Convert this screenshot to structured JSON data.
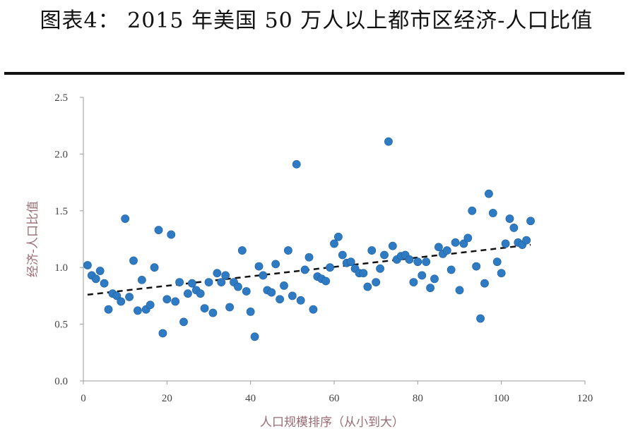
{
  "chart_data": {
    "type": "scatter",
    "title": "图表4：  2015 年美国 50 万人以上都市区经济-人口比值",
    "xlabel": "人口规模排序（从小到大）",
    "ylabel": "经济-人口比值",
    "xlim": [
      0,
      120
    ],
    "ylim": [
      0.0,
      2.5
    ],
    "x_ticks": [
      "0",
      "20",
      "40",
      "60",
      "80",
      "100",
      "120"
    ],
    "y_ticks": [
      "0.0",
      "0.5",
      "1.0",
      "1.5",
      "2.0",
      "2.5"
    ],
    "grid": false,
    "legend": "none",
    "point_color": "#2e7bc4",
    "trend_color": "#111111",
    "points": [
      [
        1,
        1.02
      ],
      [
        2,
        0.93
      ],
      [
        3,
        0.9
      ],
      [
        4,
        0.97
      ],
      [
        5,
        0.86
      ],
      [
        6,
        0.63
      ],
      [
        7,
        0.77
      ],
      [
        8,
        0.75
      ],
      [
        9,
        0.7
      ],
      [
        10,
        1.43
      ],
      [
        11,
        0.74
      ],
      [
        12,
        1.06
      ],
      [
        13,
        0.62
      ],
      [
        14,
        0.89
      ],
      [
        15,
        0.63
      ],
      [
        16,
        0.67
      ],
      [
        17,
        1.0
      ],
      [
        18,
        1.33
      ],
      [
        19,
        0.42
      ],
      [
        20,
        0.72
      ],
      [
        21,
        1.29
      ],
      [
        22,
        0.7
      ],
      [
        23,
        0.87
      ],
      [
        24,
        0.52
      ],
      [
        25,
        0.77
      ],
      [
        26,
        0.86
      ],
      [
        27,
        0.8
      ],
      [
        28,
        0.77
      ],
      [
        29,
        0.64
      ],
      [
        30,
        0.87
      ],
      [
        31,
        0.6
      ],
      [
        32,
        0.95
      ],
      [
        33,
        0.87
      ],
      [
        34,
        0.93
      ],
      [
        35,
        0.65
      ],
      [
        36,
        0.87
      ],
      [
        37,
        0.83
      ],
      [
        38,
        1.15
      ],
      [
        39,
        0.79
      ],
      [
        40,
        0.61
      ],
      [
        41,
        0.39
      ],
      [
        42,
        1.01
      ],
      [
        43,
        0.93
      ],
      [
        44,
        0.8
      ],
      [
        45,
        0.78
      ],
      [
        46,
        1.03
      ],
      [
        47,
        0.72
      ],
      [
        48,
        0.84
      ],
      [
        49,
        1.15
      ],
      [
        50,
        0.75
      ],
      [
        51,
        1.91
      ],
      [
        52,
        0.71
      ],
      [
        53,
        0.98
      ],
      [
        54,
        1.09
      ],
      [
        55,
        0.63
      ],
      [
        56,
        0.92
      ],
      [
        57,
        0.9
      ],
      [
        58,
        0.88
      ],
      [
        59,
        1.0
      ],
      [
        60,
        1.21
      ],
      [
        61,
        1.27
      ],
      [
        62,
        1.11
      ],
      [
        63,
        1.04
      ],
      [
        64,
        1.05
      ],
      [
        65,
        0.99
      ],
      [
        66,
        0.95
      ],
      [
        67,
        0.95
      ],
      [
        68,
        0.83
      ],
      [
        69,
        1.15
      ],
      [
        70,
        0.87
      ],
      [
        71,
        0.99
      ],
      [
        72,
        1.11
      ],
      [
        73,
        2.11
      ],
      [
        74,
        1.19
      ],
      [
        75,
        1.07
      ],
      [
        76,
        1.1
      ],
      [
        77,
        1.11
      ],
      [
        78,
        1.07
      ],
      [
        79,
        0.87
      ],
      [
        80,
        1.05
      ],
      [
        81,
        0.93
      ],
      [
        82,
        1.05
      ],
      [
        83,
        0.82
      ],
      [
        84,
        0.9
      ],
      [
        85,
        1.18
      ],
      [
        86,
        1.12
      ],
      [
        87,
        1.15
      ],
      [
        88,
        0.98
      ],
      [
        89,
        1.22
      ],
      [
        90,
        0.8
      ],
      [
        91,
        1.21
      ],
      [
        92,
        1.26
      ],
      [
        93,
        1.5
      ],
      [
        94,
        1.01
      ],
      [
        95,
        0.55
      ],
      [
        96,
        0.86
      ],
      [
        97,
        1.65
      ],
      [
        98,
        1.48
      ],
      [
        99,
        1.05
      ],
      [
        100,
        0.95
      ],
      [
        101,
        1.21
      ],
      [
        102,
        1.43
      ],
      [
        103,
        1.35
      ],
      [
        104,
        1.22
      ],
      [
        105,
        1.2
      ],
      [
        106,
        1.24
      ],
      [
        107,
        1.41
      ]
    ],
    "trend": {
      "x": [
        1,
        107
      ],
      "y": [
        0.76,
        1.2
      ]
    }
  }
}
